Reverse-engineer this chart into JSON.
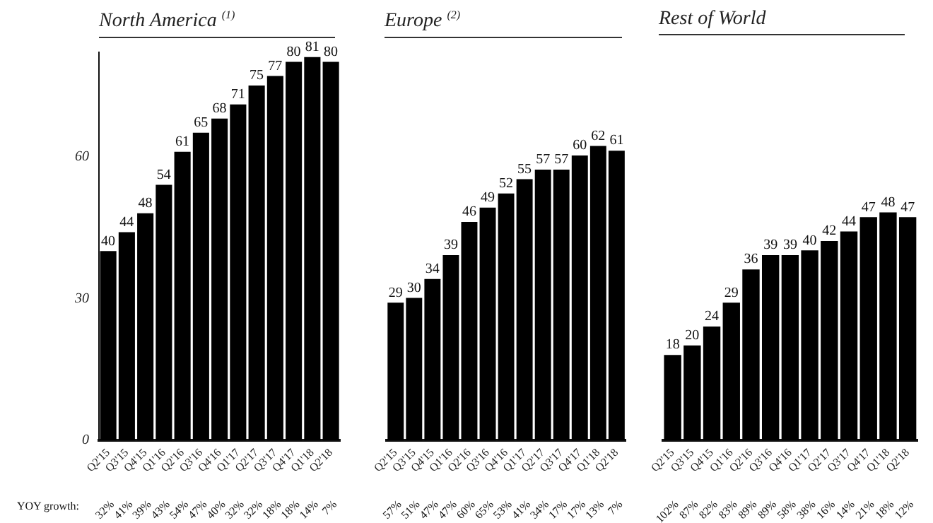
{
  "chart_data": [
    {
      "type": "bar",
      "title": "North America $^{(1)}$",
      "categories": [
        "Q2'15",
        "Q3'15",
        "Q4'15",
        "Q1'16",
        "Q2'16",
        "Q3'16",
        "Q4'16",
        "Q1'17",
        "Q2'17",
        "Q3'17",
        "Q4'17",
        "Q1'18",
        "Q2'18"
      ],
      "values": [
        40,
        44,
        48,
        54,
        61,
        65,
        68,
        71,
        75,
        77,
        80,
        81,
        80
      ],
      "color": "#000000",
      "ylim": [
        0,
        82
      ],
      "yticks": [
        0,
        30,
        60
      ],
      "data_labels": true,
      "annotations": [
        "YOY growth:",
        "32%",
        "41%",
        "39%",
        "43%",
        "54%",
        "47%",
        "40%",
        "32%",
        "32%",
        "18%",
        "18%",
        "14%",
        "7%"
      ]
    },
    {
      "type": "bar",
      "title": "Europe $^{(2)}$",
      "categories": [
        "Q2'15",
        "Q3'15",
        "Q4'15",
        "Q1'16",
        "Q2'16",
        "Q3'16",
        "Q4'16",
        "Q1'17",
        "Q2'17",
        "Q3'17",
        "Q4'17",
        "Q1'18",
        "Q2'18"
      ],
      "values": [
        29,
        30,
        34,
        39,
        46,
        49,
        52,
        55,
        57,
        57,
        60,
        62,
        61
      ],
      "color": "#000000",
      "tick_labels": "x",
      "data_labels": true,
      "annotations": [
        "57%",
        "51%",
        "47%",
        "47%",
        "60%",
        "65%",
        "53%",
        "41%",
        "34%",
        "17%",
        "17%",
        "13%",
        "7%"
      ]
    },
    {
      "type": "bar",
      "title": "Rest of World",
      "categories": [
        "Q2'15",
        "Q3'15",
        "Q4'15",
        "Q1'16",
        "Q2'16",
        "Q3'16",
        "Q4'16",
        "Q1'17",
        "Q2'17",
        "Q3'17",
        "Q4'17",
        "Q1'18",
        "Q2'18"
      ],
      "values": [
        18,
        20,
        24,
        29,
        36,
        39,
        39,
        40,
        42,
        44,
        47,
        48,
        47
      ],
      "color": "#000000",
      "tick_labels": "x",
      "data_labels": true,
      "annotations": [
        "102%",
        "87%",
        "82%",
        "83%",
        "89%",
        "89%",
        "58%",
        "38%",
        "16%",
        "14%",
        "21%",
        "18%",
        "12%"
      ]
    }
  ]
}
